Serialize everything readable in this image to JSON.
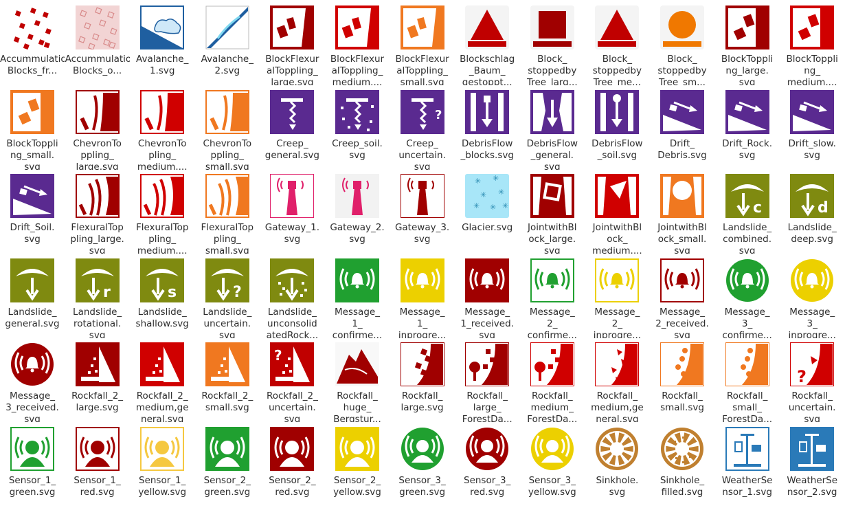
{
  "files": [
    {
      "label": "Accummulation_\nBlocks_fr...",
      "icon": "acc-blocks",
      "color": "#c00000"
    },
    {
      "label": "Accummulation_\nBlocks_o...",
      "icon": "acc-blocks-outline",
      "color": "#d88a8a"
    },
    {
      "label": "Avalanche_\n1.svg",
      "icon": "avalanche",
      "color": "#1f5fa0"
    },
    {
      "label": "Avalanche_\n2.svg",
      "icon": "avalanche2",
      "color": "#1f5fa0"
    },
    {
      "label": "BlockFlexur\nalToppling_\nlarge.svg",
      "icon": "block-flex",
      "color": "#a00000"
    },
    {
      "label": "BlockFlexur\nalToppling_\nmedium....",
      "icon": "block-flex",
      "color": "#d00000"
    },
    {
      "label": "BlockFlexur\nalToppling_\nsmall.svg",
      "icon": "block-flex",
      "color": "#f07820"
    },
    {
      "label": "Blockschlag\n_Baum_\ngestoppt...",
      "icon": "triangle",
      "color": "#c00000"
    },
    {
      "label": "Block_\nstoppedby\nTree_larg...",
      "icon": "square",
      "color": "#a00000"
    },
    {
      "label": "Block_\nstoppedby\nTree_me...",
      "icon": "triangle",
      "color": "#c00000"
    },
    {
      "label": "Block_\nstoppedby\nTree_sm...",
      "icon": "circle",
      "color": "#f07800"
    },
    {
      "label": "BlockToppli\nng_large.\nsvg",
      "icon": "block-topple",
      "color": "#a00000"
    },
    {
      "label": "BlockToppli\nng_\nmedium....",
      "icon": "block-topple",
      "color": "#d00000"
    },
    {
      "label": "BlockToppli\nng_small.\nsvg",
      "icon": "block-topple",
      "color": "#f07820"
    },
    {
      "label": "ChevronTo\nppling_\nlarge.svg",
      "icon": "chevron",
      "color": "#a00000"
    },
    {
      "label": "ChevronTo\npling_\nmedium....",
      "icon": "chevron",
      "color": "#d00000"
    },
    {
      "label": "ChevronTo\nppling_\nsmall.svg",
      "icon": "chevron",
      "color": "#f07820"
    },
    {
      "label": "Creep_\ngeneral.svg",
      "icon": "creep",
      "color": "#5a2a90"
    },
    {
      "label": "Creep_soil.\nsvg",
      "icon": "creep-soil",
      "color": "#5a2a90"
    },
    {
      "label": "Creep_\nuncertain.\nsvg",
      "icon": "creep-q",
      "color": "#5a2a90"
    },
    {
      "label": "DebrisFlow\n_blocks.svg",
      "icon": "debris",
      "color": "#5a2a90"
    },
    {
      "label": "DebrisFlow\n_general.\nsvg",
      "icon": "debris-general",
      "color": "#5a2a90"
    },
    {
      "label": "DebrisFlow\n_soil.svg",
      "icon": "debris-soil",
      "color": "#5a2a90"
    },
    {
      "label": "Drift_\nDebris.svg",
      "icon": "drift",
      "color": "#5a2a90"
    },
    {
      "label": "Drift_Rock.\nsvg",
      "icon": "drift",
      "color": "#5a2a90"
    },
    {
      "label": "Drift_slow.\nsvg",
      "icon": "drift",
      "color": "#5a2a90"
    },
    {
      "label": "Drift_Soil.\nsvg",
      "icon": "drift",
      "color": "#5a2a90"
    },
    {
      "label": "FlexuralTop\npling_large.\nsvg",
      "icon": "flexural",
      "color": "#a00000"
    },
    {
      "label": "FlexuralTop\npling_\nmedium....",
      "icon": "flexural",
      "color": "#d00000"
    },
    {
      "label": "FlexuralTop\npling_\nsmall.svg",
      "icon": "flexural",
      "color": "#f07820"
    },
    {
      "label": "Gateway_1.\nsvg",
      "icon": "gateway",
      "color": "#e0206a"
    },
    {
      "label": "Gateway_2.\nsvg",
      "icon": "gateway-filled",
      "color": "#e0206a"
    },
    {
      "label": "Gateway_3.\nsvg",
      "icon": "gateway",
      "color": "#a00000"
    },
    {
      "label": "Glacier.svg",
      "icon": "glacier",
      "color": "#7fd8f0"
    },
    {
      "label": "JointwithBl\nock_large.\nsvg",
      "icon": "joint-square",
      "color": "#a00000"
    },
    {
      "label": "JointwithBl\nock_\nmedium....",
      "icon": "joint-tri",
      "color": "#d00000"
    },
    {
      "label": "JointwithBl\nock_small.\nsvg",
      "icon": "joint-circle",
      "color": "#f07820"
    },
    {
      "label": "Landslide_\ncombined.\nsvg",
      "icon": "landslide",
      "color": "#7f8a10",
      "suffix": "c"
    },
    {
      "label": "Landslide_\ndeep.svg",
      "icon": "landslide",
      "color": "#7f8a10",
      "suffix": "d"
    },
    {
      "label": "Landslide_\ngeneral.svg",
      "icon": "landslide",
      "color": "#7f8a10",
      "suffix": ""
    },
    {
      "label": "Landslide_\nrotational.\nsvg",
      "icon": "landslide",
      "color": "#7f8a10",
      "suffix": "r"
    },
    {
      "label": "Landslide_\nshallow.svg",
      "icon": "landslide",
      "color": "#7f8a10",
      "suffix": "s"
    },
    {
      "label": "Landslide_\nuncertain.\nsvg",
      "icon": "landslide",
      "color": "#7f8a10",
      "suffix": "?"
    },
    {
      "label": "Landslide_\nunconsolid\natedRock...",
      "icon": "landslide-unc",
      "color": "#7f8a10",
      "suffix": ""
    },
    {
      "label": "Message_\n1_\nconfirme...",
      "icon": "msg-filled",
      "color": "#20a030"
    },
    {
      "label": "Message_\n1_\ninprogre...",
      "icon": "msg-filled",
      "color": "#ecd000"
    },
    {
      "label": "Message_\n1_received.\nsvg",
      "icon": "msg-filled",
      "color": "#a00000"
    },
    {
      "label": "Message_\n2_\nconfirme...",
      "icon": "msg-outline",
      "color": "#20a030"
    },
    {
      "label": "Message_\n2_\ninprogre...",
      "icon": "msg-outline",
      "color": "#ecd000"
    },
    {
      "label": "Message_\n2_received.\nsvg",
      "icon": "msg-outline",
      "color": "#a00000"
    },
    {
      "label": "Message_\n3_\nconfirme...",
      "icon": "msg-circle",
      "color": "#20a030"
    },
    {
      "label": "Message_\n3_\ninprogre...",
      "icon": "msg-circle",
      "color": "#ecd000"
    },
    {
      "label": "Message_\n3_received.\nsvg",
      "icon": "msg-circle",
      "color": "#a00000"
    },
    {
      "label": "Rockfall_2_\nlarge.svg",
      "icon": "rockfall2",
      "color": "#a00000"
    },
    {
      "label": "Rockfall_2_\nmedium,ge\nneral.svg",
      "icon": "rockfall2",
      "color": "#d00000"
    },
    {
      "label": "Rockfall_2_\nsmall.svg",
      "icon": "rockfall2",
      "color": "#f07820"
    },
    {
      "label": "Rockfall_2_\nuncertain.\nsvg",
      "icon": "rockfall2-q",
      "color": "#c00000"
    },
    {
      "label": "Rockfall_\nhuge_\nBergstur...",
      "icon": "mountain",
      "color": "#a00000"
    },
    {
      "label": "Rockfall_\nlarge.svg",
      "icon": "rockfall",
      "color": "#a00000"
    },
    {
      "label": "Rockfall_\nlarge_\nForestDa...",
      "icon": "rockfall-forest",
      "color": "#a00000"
    },
    {
      "label": "Rockfall_\nmedium_\nForestDa...",
      "icon": "rockfall-forest",
      "color": "#d00000"
    },
    {
      "label": "Rockfall_\nmedium,ge\nneral.svg",
      "icon": "rockfall-tri",
      "color": "#d00000"
    },
    {
      "label": "Rockfall_\nsmall.svg",
      "icon": "rockfall-dots",
      "color": "#f07820"
    },
    {
      "label": "Rockfall_\nsmall_\nForestDa...",
      "icon": "rockfall-dots",
      "color": "#f07820"
    },
    {
      "label": "Rockfall_\nuncertain.\nsvg",
      "icon": "rockfall-q",
      "color": "#d00000"
    },
    {
      "label": "Sensor_1_\ngreen.svg",
      "icon": "sensor-outline",
      "color": "#20a030"
    },
    {
      "label": "Sensor_1_\nred.svg",
      "icon": "sensor-outline",
      "color": "#a00000"
    },
    {
      "label": "Sensor_1_\nyellow.svg",
      "icon": "sensor-outline",
      "color": "#f5c840"
    },
    {
      "label": "Sensor_2_\ngreen.svg",
      "icon": "sensor-filled",
      "color": "#20a030"
    },
    {
      "label": "Sensor_2_\nred.svg",
      "icon": "sensor-filled",
      "color": "#a00000"
    },
    {
      "label": "Sensor_2_\nyellow.svg",
      "icon": "sensor-filled",
      "color": "#ecd000"
    },
    {
      "label": "Sensor_3_\ngreen.svg",
      "icon": "sensor-circle",
      "color": "#20a030"
    },
    {
      "label": "Sensor_3_\nred.svg",
      "icon": "sensor-circle",
      "color": "#a00000"
    },
    {
      "label": "Sensor_3_\nyellow.svg",
      "icon": "sensor-circle",
      "color": "#ecd000"
    },
    {
      "label": "Sinkhole.\nsvg",
      "icon": "sinkhole",
      "color": "#c08030"
    },
    {
      "label": "Sinkhole_\nfilled.svg",
      "icon": "sinkhole-filled",
      "color": "#c08030"
    },
    {
      "label": "WeatherSe\nnsor_1.svg",
      "icon": "weather",
      "color": "#2a7ab8"
    },
    {
      "label": "WeatherSe\nnsor_2.svg",
      "icon": "weather-filled",
      "color": "#2a7ab8"
    }
  ]
}
